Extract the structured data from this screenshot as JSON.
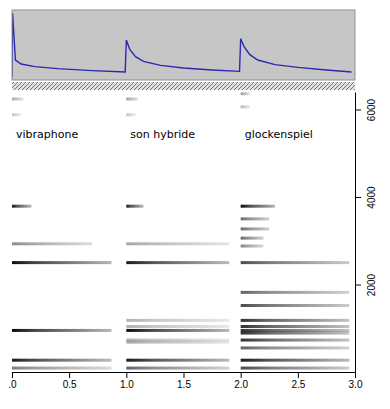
{
  "chart_data": [
    {
      "type": "line",
      "x": [
        0,
        0.005,
        0.03,
        0.08,
        0.2,
        0.4,
        0.7,
        0.99,
        1.0,
        1.03,
        1.08,
        1.15,
        1.3,
        1.5,
        1.75,
        1.99,
        2.0,
        2.03,
        2.08,
        2.15,
        2.3,
        2.5,
        2.75,
        2.97
      ],
      "values": [
        0.05,
        1.0,
        0.3,
        0.24,
        0.2,
        0.17,
        0.14,
        0.12,
        0.6,
        0.46,
        0.35,
        0.28,
        0.22,
        0.18,
        0.15,
        0.13,
        0.62,
        0.5,
        0.38,
        0.3,
        0.23,
        0.19,
        0.15,
        0.12
      ],
      "color": "#2a2ab0",
      "xlim": [
        0,
        3.0
      ],
      "ylim": [
        0,
        1.05
      ],
      "tick_labels": false
    },
    {
      "type": "spectrogram",
      "xlim": [
        0,
        3.0
      ],
      "xticks": [
        {
          "value": 0,
          "label": ".0"
        },
        0.5,
        {
          "value": 1,
          "label": "1.0"
        },
        1.5,
        {
          "value": 2,
          "label": "2.0"
        },
        2.5,
        {
          "value": 3,
          "label": "3.0"
        }
      ],
      "ylim": [
        0,
        6400
      ],
      "yticks": [
        2000,
        4000,
        6000
      ],
      "sounds": [
        {
          "name": "vibraphone",
          "onset": 0,
          "partials": [
            {
              "frequency": 6240,
              "duration": 0.1,
              "level": 0.35
            },
            {
              "frequency": 5880,
              "duration": 0.08,
              "level": 0.25
            },
            {
              "frequency": 3790,
              "duration": 0.17,
              "level": 0.9
            },
            {
              "frequency": 2930,
              "duration": 0.7,
              "level": 0.45
            },
            {
              "frequency": 2500,
              "duration": 0.87,
              "level": 0.95
            },
            {
              "frequency": 950,
              "duration": 0.87,
              "level": 0.95
            },
            {
              "frequency": 270,
              "duration": 0.87,
              "level": 0.9
            },
            {
              "frequency": 90,
              "duration": 0.87,
              "level": 0.5
            }
          ]
        },
        {
          "name": "son hybride",
          "onset": 1.0,
          "partials": [
            {
              "frequency": 6240,
              "duration": 0.1,
              "level": 0.4
            },
            {
              "frequency": 5880,
              "duration": 0.08,
              "level": 0.25
            },
            {
              "frequency": 3790,
              "duration": 0.15,
              "level": 0.9
            },
            {
              "frequency": 2930,
              "duration": 0.9,
              "level": 0.35
            },
            {
              "frequency": 2500,
              "duration": 0.9,
              "level": 0.9
            },
            {
              "frequency": 1180,
              "duration": 0.9,
              "level": 0.3
            },
            {
              "frequency": 1040,
              "duration": 0.9,
              "level": 0.3
            },
            {
              "frequency": 950,
              "duration": 0.9,
              "level": 0.95
            },
            {
              "frequency": 730,
              "duration": 0.9,
              "level": 0.3
            },
            {
              "frequency": 680,
              "duration": 0.9,
              "level": 0.3
            },
            {
              "frequency": 270,
              "duration": 0.9,
              "level": 0.9
            },
            {
              "frequency": 90,
              "duration": 0.9,
              "level": 0.6
            }
          ]
        },
        {
          "name": "glockenspiel",
          "onset": 2.0,
          "partials": [
            {
              "frequency": 6360,
              "duration": 0.08,
              "level": 0.4
            },
            {
              "frequency": 6060,
              "duration": 0.08,
              "level": 0.3
            },
            {
              "frequency": 3790,
              "duration": 0.3,
              "level": 0.95
            },
            {
              "frequency": 3500,
              "duration": 0.25,
              "level": 0.6
            },
            {
              "frequency": 3270,
              "duration": 0.25,
              "level": 0.6
            },
            {
              "frequency": 3060,
              "duration": 0.2,
              "level": 0.6
            },
            {
              "frequency": 2880,
              "duration": 0.2,
              "level": 0.5
            },
            {
              "frequency": 2500,
              "duration": 0.95,
              "level": 0.7
            },
            {
              "frequency": 1820,
              "duration": 0.95,
              "level": 0.6
            },
            {
              "frequency": 1520,
              "duration": 0.95,
              "level": 0.7
            },
            {
              "frequency": 1180,
              "duration": 0.95,
              "level": 0.8
            },
            {
              "frequency": 1040,
              "duration": 0.95,
              "level": 0.8
            },
            {
              "frequency": 950,
              "duration": 0.95,
              "level": 0.8
            },
            {
              "frequency": 890,
              "duration": 0.95,
              "level": 0.8
            },
            {
              "frequency": 730,
              "duration": 0.95,
              "level": 0.8
            },
            {
              "frequency": 550,
              "duration": 0.95,
              "level": 0.6
            },
            {
              "frequency": 270,
              "duration": 0.95,
              "level": 0.9
            },
            {
              "frequency": 90,
              "duration": 0.95,
              "level": 0.7
            }
          ]
        }
      ]
    }
  ]
}
